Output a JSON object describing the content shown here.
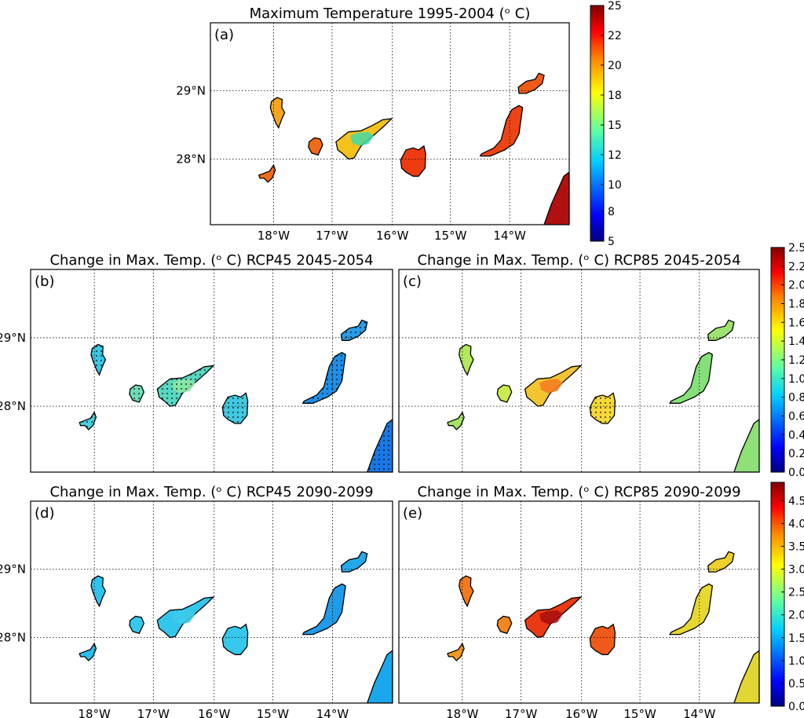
{
  "lon_ticks": [
    "18°W",
    "17°W",
    "16°W",
    "15°W",
    "14°W"
  ],
  "lat_ticks": [
    "29°N",
    "28°N"
  ],
  "panels": [
    {
      "id": "a",
      "letter": "(a)",
      "title": "Maximum Temperature 1995-2004 (ᵒ C)"
    },
    {
      "id": "b",
      "letter": "(b)",
      "title": "Change in Max. Temp. (ᵒ C) RCP45 2045-2054"
    },
    {
      "id": "c",
      "letter": "(c)",
      "title": "Change in Max. Temp. (ᵒ C) RCP85 2045-2054"
    },
    {
      "id": "d",
      "letter": "(d)",
      "title": "Change in Max. Temp. (ᵒ C) RCP45 2090-2099"
    },
    {
      "id": "e",
      "letter": "(e)",
      "title": "Change in Max. Temp. (ᵒ C) RCP85 2090-2099"
    }
  ],
  "colorbars": [
    {
      "id": "cb-top",
      "ticks": [
        "25",
        "22",
        "20",
        "18",
        "15",
        "12",
        "10",
        "8",
        "5"
      ]
    },
    {
      "id": "cb-mid",
      "ticks": [
        "2.5",
        "2.2",
        "2.0",
        "1.8",
        "1.6",
        "1.4",
        "1.2",
        "1.0",
        "0.8",
        "0.6",
        "0.4",
        "0.2",
        "0.0"
      ]
    },
    {
      "id": "cb-bot",
      "ticks": [
        "4.5",
        "4.0",
        "3.5",
        "3.0",
        "2.5",
        "2.0",
        "1.5",
        "1.0",
        "0.5",
        "0.0"
      ]
    }
  ],
  "islands": [
    "La Palma",
    "El Hierro",
    "La Gomera",
    "Tenerife",
    "Gran Canaria",
    "Fuerteventura",
    "Lanzarote",
    "Africa coast"
  ],
  "colors": {
    "jet": [
      "#00007f",
      "#0000ff",
      "#007fff",
      "#00ffff",
      "#7fff7f",
      "#ffff00",
      "#ff7f00",
      "#ff0000",
      "#7f0000"
    ]
  },
  "panel_fills": {
    "a": {
      "La Palma": "#f7a51a",
      "El Hierro": "#f26d1a",
      "La Gomera": "#f06a18",
      "Tenerife": "#f5c21c",
      "Tenerife_core": "#3fd9a8",
      "Gran Canaria": "#ee3b12",
      "Fuerteventura": "#ed4416",
      "Lanzarote": "#ef5a18",
      "Africa coast": "#b11010"
    },
    "b": {
      "La Palma": "#39c8e8",
      "El Hierro": "#4cd0e0",
      "La Gomera": "#6ddbb8",
      "Tenerife": "#57d6c0",
      "Tenerife_core": "#8ee6a0",
      "Gran Canaria": "#42c8e0",
      "Fuerteventura": "#1e8fe8",
      "Lanzarote": "#2a9ce6",
      "Africa coast": "#1a78e6"
    },
    "c": {
      "La Palma": "#b3e85a",
      "El Hierro": "#a5e468",
      "La Gomera": "#c6ec50",
      "Tenerife": "#f1c430",
      "Tenerife_core": "#f47a22",
      "Gran Canaria": "#f6d838",
      "Fuerteventura": "#86e07a",
      "Lanzarote": "#9ee270",
      "Africa coast": "#8fe076"
    },
    "d": {
      "La Palma": "#2ec4ee",
      "El Hierro": "#28bfee",
      "La Gomera": "#35c8ec",
      "Tenerife": "#33c6ec",
      "Tenerife_core": "#3dcaea",
      "Gran Canaria": "#36c8ec",
      "Fuerteventura": "#1f9be8",
      "Lanzarote": "#25a8ea",
      "Africa coast": "#1aa8ec"
    },
    "e": {
      "La Palma": "#f47a1e",
      "El Hierro": "#f29a20",
      "La Gomera": "#f28620",
      "Tenerife": "#ea3a14",
      "Tenerife_core": "#a80e0e",
      "Gran Canaria": "#f05a18",
      "Fuerteventura": "#e7d830",
      "Lanzarote": "#eed02c",
      "Africa coast": "#e2d634"
    }
  }
}
